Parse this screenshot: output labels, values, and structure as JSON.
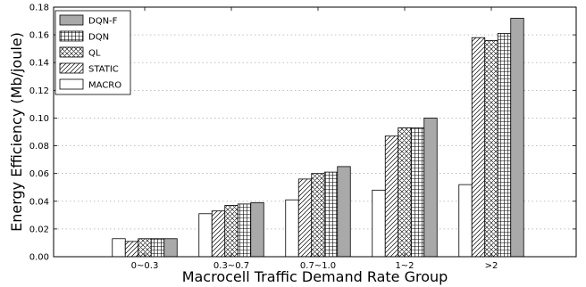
{
  "chart_data": {
    "type": "bar",
    "title": "",
    "xlabel": "Macrocell Traffic Demand Rate Group",
    "ylabel": "Energy Efficiency (Mb/joule)",
    "categories": [
      "0~0.3",
      "0.3~0.7",
      "0.7~1.0",
      "1~2",
      ">2"
    ],
    "ylim": [
      0,
      0.18
    ],
    "yticks": [
      "0.00",
      "0.02",
      "0.04",
      "0.06",
      "0.08",
      "0.10",
      "0.12",
      "0.14",
      "0.16",
      "0.18"
    ],
    "grid": "horizontal dotted",
    "legend_position": "top-left",
    "series": [
      {
        "name": "MACRO",
        "pattern": "solid-white",
        "values": [
          0.013,
          0.031,
          0.041,
          0.048,
          0.052
        ]
      },
      {
        "name": "STATIC",
        "pattern": "diagonal-hatch",
        "values": [
          0.011,
          0.033,
          0.056,
          0.087,
          0.158
        ]
      },
      {
        "name": "QL",
        "pattern": "cross-hatch",
        "values": [
          0.013,
          0.037,
          0.06,
          0.093,
          0.156
        ]
      },
      {
        "name": "DQN",
        "pattern": "grid-hatch",
        "values": [
          0.013,
          0.038,
          0.061,
          0.093,
          0.161
        ]
      },
      {
        "name": "DQN-F",
        "pattern": "solid-gray",
        "values": [
          0.013,
          0.039,
          0.065,
          0.1,
          0.172
        ]
      }
    ],
    "legend_order": [
      "DQN-F",
      "DQN",
      "QL",
      "STATIC",
      "MACRO"
    ],
    "colors": {
      "gray_fill": "#a9a9a9",
      "white_fill": "#ffffff",
      "stroke": "#000000"
    }
  }
}
